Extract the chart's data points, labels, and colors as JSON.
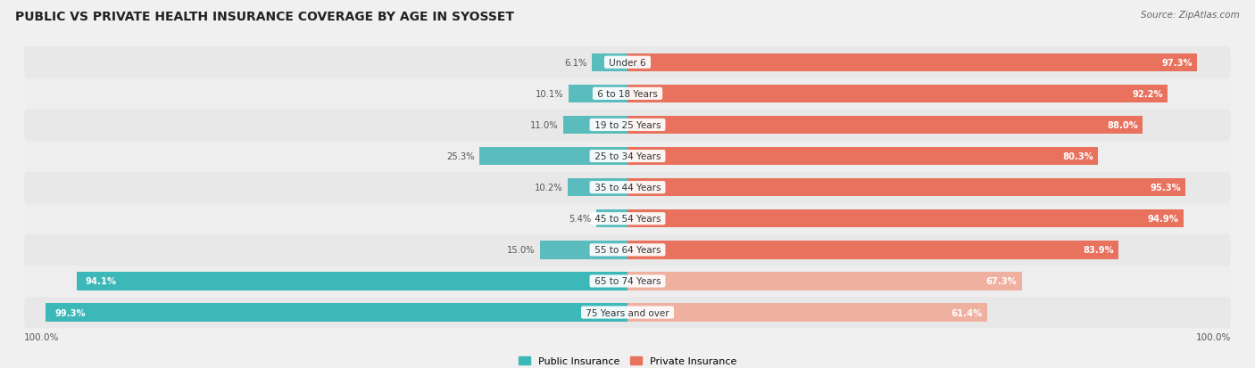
{
  "title": "PUBLIC VS PRIVATE HEALTH INSURANCE COVERAGE BY AGE IN SYOSSET",
  "source": "Source: ZipAtlas.com",
  "categories": [
    "Under 6",
    "6 to 18 Years",
    "19 to 25 Years",
    "25 to 34 Years",
    "35 to 44 Years",
    "45 to 54 Years",
    "55 to 64 Years",
    "65 to 74 Years",
    "75 Years and over"
  ],
  "public_values": [
    6.1,
    10.1,
    11.0,
    25.3,
    10.2,
    5.4,
    15.0,
    94.1,
    99.3
  ],
  "private_values": [
    97.3,
    92.2,
    88.0,
    80.3,
    95.3,
    94.9,
    83.9,
    67.3,
    61.4
  ],
  "public_color_strong": "#3db8b8",
  "public_color_light": "#5bbcbd",
  "private_color_strong": "#e8725e",
  "private_color_light": "#f0b0a0",
  "bar_height": 0.58,
  "background_color": "#f0f0f0",
  "row_bg_even": "#e8e8e8",
  "row_bg_odd": "#eeeeee",
  "title_fontsize": 10,
  "source_fontsize": 7.5,
  "category_fontsize": 7.5,
  "value_fontsize": 7.2,
  "legend_fontsize": 8,
  "axis_label_left": "100.0%",
  "axis_label_right": "100.0%",
  "legend_public": "Public Insurance",
  "legend_private": "Private Insurance",
  "xlim_left": -105,
  "xlim_right": 105
}
